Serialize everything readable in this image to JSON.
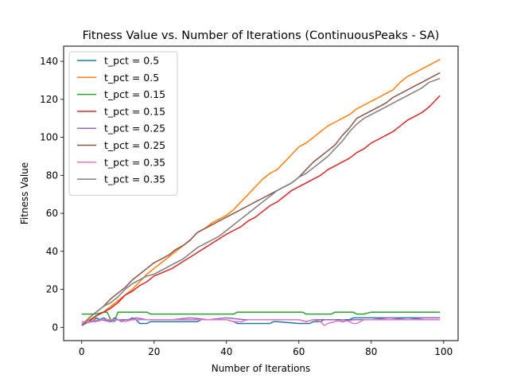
{
  "chart_data": {
    "type": "line",
    "title": "Fitness Value vs. Number of Iterations (ContinuousPeaks - SA)",
    "xlabel": "Number of Iterations",
    "ylabel": "Fitness Value",
    "xlim": [
      -5,
      104
    ],
    "ylim": [
      -7,
      148
    ],
    "xticks": [
      0,
      20,
      40,
      60,
      80,
      100
    ],
    "yticks": [
      0,
      20,
      40,
      60,
      80,
      100,
      120,
      140
    ],
    "grid": false,
    "legend_position": "top-left",
    "series": [
      {
        "name": "t_pct = 0.5",
        "color": "#1f77b4",
        "x": [
          0,
          2,
          3,
          4,
          5,
          6,
          7,
          8,
          9,
          10,
          11,
          12,
          13,
          14,
          15,
          16,
          17,
          18,
          19,
          20,
          30,
          32,
          33,
          34,
          38,
          40,
          42,
          43,
          44,
          50,
          52,
          53,
          54,
          60,
          62,
          63,
          64,
          66,
          67,
          70,
          72,
          73,
          74,
          75,
          76,
          80,
          85,
          90,
          95,
          99
        ],
        "y": [
          1,
          4,
          3,
          5,
          4,
          5,
          4,
          3,
          5,
          4,
          3,
          4,
          4,
          5,
          4,
          2,
          2,
          2,
          3,
          3,
          3,
          3,
          4,
          4,
          4,
          4,
          3,
          2,
          2,
          2,
          2,
          3,
          3,
          2,
          2,
          2,
          3,
          3,
          4,
          4,
          4,
          4,
          4,
          5,
          5,
          5,
          5,
          5,
          5,
          5
        ]
      },
      {
        "name": "t_pct = 0.5",
        "color": "#ff7f0e",
        "x": [
          0,
          2,
          4,
          6,
          8,
          10,
          12,
          14,
          16,
          18,
          20,
          22,
          24,
          26,
          28,
          30,
          32,
          34,
          36,
          38,
          40,
          42,
          44,
          46,
          48,
          50,
          52,
          54,
          56,
          58,
          60,
          62,
          64,
          66,
          68,
          70,
          72,
          74,
          76,
          78,
          80,
          82,
          84,
          86,
          88,
          90,
          92,
          94,
          96,
          99
        ],
        "y": [
          1,
          4,
          6,
          8,
          11,
          14,
          17,
          20,
          24,
          28,
          31,
          34,
          37,
          40,
          43,
          46,
          50,
          52,
          55,
          57,
          59,
          62,
          66,
          70,
          74,
          78,
          81,
          83,
          87,
          91,
          95,
          97,
          100,
          103,
          106,
          108,
          110,
          112,
          115,
          117,
          119,
          121,
          123,
          125,
          129,
          132,
          134,
          136,
          138,
          141
        ]
      },
      {
        "name": "t_pct = 0.15",
        "color": "#2ca02c",
        "x": [
          0,
          2,
          4,
          6,
          7,
          8,
          9,
          10,
          12,
          14,
          16,
          18,
          19,
          20,
          30,
          40,
          42,
          43,
          44,
          50,
          55,
          60,
          61,
          62,
          63,
          64,
          65,
          66,
          68,
          69,
          70,
          72,
          74,
          75,
          76,
          78,
          80,
          90,
          99
        ],
        "y": [
          7,
          7,
          7,
          8,
          8,
          4,
          3,
          8,
          8,
          8,
          8,
          8,
          7,
          7,
          7,
          7,
          7,
          8,
          8,
          8,
          8,
          8,
          8,
          7,
          7,
          7,
          7,
          7,
          7,
          7,
          8,
          8,
          8,
          8,
          7,
          7,
          8,
          8,
          8
        ]
      },
      {
        "name": "t_pct = 0.15",
        "color": "#d62728",
        "x": [
          0,
          2,
          4,
          6,
          8,
          10,
          12,
          14,
          16,
          18,
          20,
          25,
          30,
          35,
          40,
          42,
          44,
          46,
          48,
          50,
          52,
          54,
          56,
          58,
          60,
          62,
          64,
          66,
          68,
          70,
          72,
          74,
          76,
          78,
          80,
          82,
          84,
          86,
          88,
          90,
          92,
          94,
          96,
          99
        ],
        "y": [
          1,
          3,
          6,
          8,
          10,
          13,
          17,
          19,
          22,
          24,
          27,
          31,
          37,
          43,
          49,
          51,
          53,
          56,
          58,
          61,
          64,
          66,
          69,
          72,
          74,
          76,
          78,
          80,
          83,
          85,
          87,
          89,
          92,
          94,
          97,
          99,
          101,
          103,
          106,
          109,
          111,
          113,
          116,
          122
        ]
      },
      {
        "name": "t_pct = 0.25",
        "color": "#9467bd",
        "x": [
          0,
          3,
          5,
          8,
          10,
          13,
          15,
          18,
          20,
          25,
          30,
          35,
          40,
          45,
          50,
          55,
          60,
          62,
          64,
          66,
          70,
          72,
          75,
          80,
          85,
          90,
          95,
          99
        ],
        "y": [
          2,
          3,
          4,
          3,
          4,
          4,
          5,
          4,
          4,
          4,
          5,
          4,
          5,
          4,
          4,
          4,
          4,
          3,
          4,
          4,
          4,
          3,
          4,
          4,
          5,
          4,
          5,
          5
        ]
      },
      {
        "name": "t_pct = 0.25",
        "color": "#8c564b",
        "x": [
          0,
          2,
          4,
          6,
          8,
          10,
          12,
          14,
          16,
          18,
          20,
          22,
          24,
          26,
          28,
          30,
          32,
          34,
          36,
          38,
          40,
          42,
          44,
          46,
          48,
          50,
          52,
          54,
          56,
          58,
          60,
          62,
          64,
          66,
          68,
          70,
          72,
          74,
          76,
          78,
          80,
          82,
          84,
          86,
          88,
          90,
          92,
          94,
          96,
          99
        ],
        "y": [
          1,
          5,
          8,
          11,
          15,
          18,
          21,
          25,
          28,
          31,
          34,
          36,
          38,
          41,
          43,
          46,
          50,
          52,
          54,
          56,
          58,
          60,
          62,
          64,
          66,
          68,
          70,
          72,
          74,
          76,
          79,
          83,
          87,
          90,
          93,
          96,
          101,
          105,
          110,
          112,
          114,
          116,
          118,
          121,
          123,
          125,
          127,
          129,
          131,
          134
        ]
      },
      {
        "name": "t_pct = 0.35",
        "color": "#e377c2",
        "x": [
          0,
          2,
          4,
          6,
          8,
          10,
          12,
          14,
          20,
          25,
          30,
          35,
          40,
          42,
          44,
          46,
          50,
          55,
          60,
          62,
          64,
          66,
          67,
          68,
          70,
          72,
          74,
          75,
          76,
          78,
          80,
          85,
          90,
          95,
          99
        ],
        "y": [
          3,
          3,
          3,
          4,
          4,
          4,
          3,
          4,
          4,
          4,
          4,
          4,
          4,
          3,
          3,
          4,
          4,
          4,
          4,
          3,
          4,
          3,
          1,
          2,
          3,
          4,
          3,
          2,
          2,
          4,
          4,
          4,
          4,
          4,
          4
        ]
      },
      {
        "name": "t_pct = 0.35",
        "color": "#7f7f7f",
        "x": [
          0,
          2,
          4,
          6,
          8,
          10,
          12,
          14,
          16,
          18,
          20,
          22,
          24,
          26,
          28,
          30,
          32,
          34,
          36,
          38,
          40,
          42,
          44,
          46,
          48,
          50,
          52,
          54,
          56,
          58,
          60,
          62,
          64,
          66,
          68,
          70,
          72,
          74,
          76,
          78,
          80,
          82,
          84,
          86,
          88,
          90,
          92,
          94,
          96,
          99
        ],
        "y": [
          1,
          5,
          8,
          11,
          13,
          16,
          20,
          23,
          25,
          27,
          28,
          30,
          32,
          34,
          36,
          39,
          42,
          44,
          46,
          48,
          51,
          54,
          57,
          60,
          63,
          66,
          69,
          72,
          74,
          76,
          79,
          81,
          84,
          87,
          90,
          94,
          98,
          103,
          107,
          110,
          112,
          114,
          116,
          118,
          120,
          122,
          124,
          126,
          129,
          131
        ]
      }
    ]
  }
}
